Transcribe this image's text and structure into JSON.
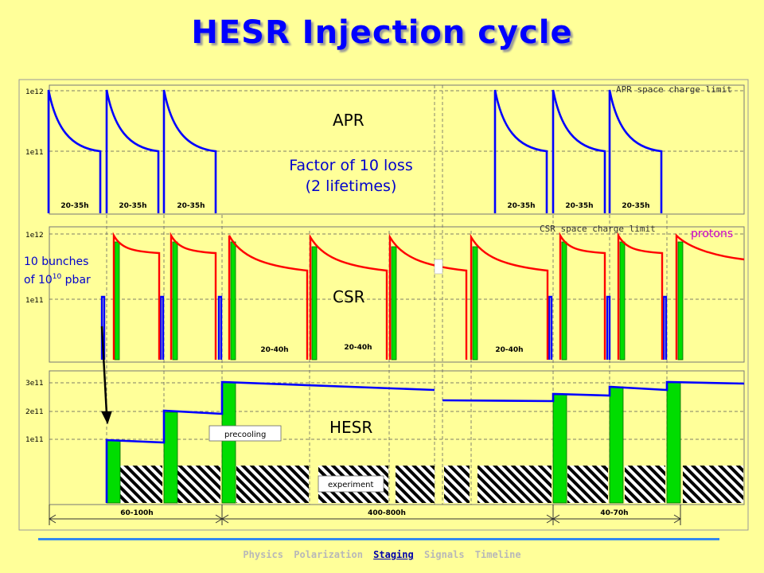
{
  "title": "HESR Injection cycle",
  "colors": {
    "background": "#ffff99",
    "title": "#0000ff",
    "apr_curve": "#0000ff",
    "csr_protons": "#ff0000",
    "csr_pbar": "#0000ff",
    "fill_bar": "#00dd00",
    "hesr_curve": "#0000ff",
    "annotation_blue": "#0000cc",
    "annotation_magenta": "#cc00cc"
  },
  "panels": {
    "apr": {
      "name": "APR",
      "y_ticks": [
        "1e12",
        "1e11"
      ],
      "limit_label": "APR space charge limit",
      "note_line1": "Factor of 10 loss",
      "note_line2": "(2 lifetimes)",
      "intervals": [
        "20-35h",
        "20-35h",
        "20-35h",
        "20-35h",
        "20-35h",
        "20-35h"
      ]
    },
    "csr": {
      "name": "CSR",
      "y_ticks": [
        "1e12",
        "1e11"
      ],
      "limit_label": "CSR space charge limit",
      "protons_label": "protons",
      "bunches_line1": "10 bunches",
      "bunches_line2_prefix": "of 10",
      "bunches_line2_sup": "10",
      "bunches_line2_suffix": " pbar",
      "intervals": [
        "20-40h",
        "20-40h",
        "20-40h"
      ]
    },
    "hesr": {
      "name": "HESR",
      "y_ticks": [
        "3e11",
        "2e11",
        "1e11"
      ],
      "precooling_label": "precooling",
      "experiment_label": "experiment"
    }
  },
  "timeline": {
    "spans": [
      "60-100h",
      "400-800h",
      "40-70h"
    ]
  },
  "nav": [
    "Physics",
    "Polarization",
    "Staging",
    "Signals",
    "Timeline"
  ],
  "nav_active": "Staging"
}
